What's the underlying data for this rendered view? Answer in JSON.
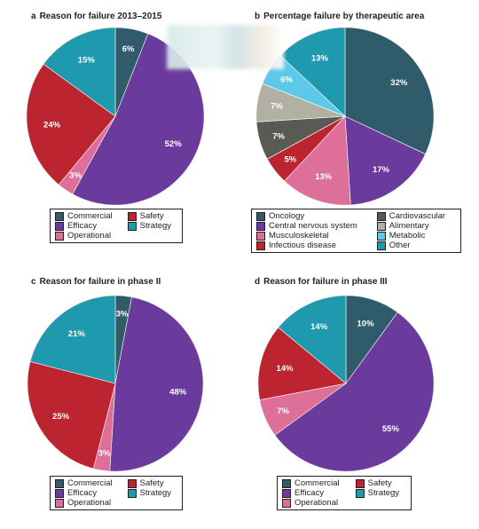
{
  "colors": {
    "Commercial": "#2f5b6b",
    "Efficacy": "#6a3a9c",
    "Safety": "#bc2530",
    "Strategy": "#1e99ad",
    "Operational": "#de6f99",
    "Oncology": "#2f5b6b",
    "Central nervous system": "#6a3a9c",
    "Musculoskeletal": "#de6f99",
    "Infectious disease": "#bc2530",
    "Cardiovascular": "#5a5a55",
    "Alimentary": "#b2b0a2",
    "Metabolic": "#5cc9ea",
    "Other": "#1e99ad"
  },
  "panels": [
    {
      "letter": "a",
      "title": "Reason for failure 2013–2015",
      "legend": [
        "Commercial",
        "Safety",
        "Efficacy",
        "Strategy",
        "Operational"
      ]
    },
    {
      "letter": "b",
      "title": "Percentage failure by therapeutic area",
      "legend": [
        "Oncology",
        "Cardiovascular",
        "Central nervous system",
        "Alimentary",
        "Musculoskeletal",
        "Metabolic",
        "Infectious disease",
        "Other"
      ]
    },
    {
      "letter": "c",
      "title": "Reason for failure in phase II",
      "legend": [
        "Commercial",
        "Safety",
        "Efficacy",
        "Strategy",
        "Operational"
      ]
    },
    {
      "letter": "d",
      "title": "Reason for failure in phase III",
      "legend": [
        "Commercial",
        "Safety",
        "Efficacy",
        "Strategy",
        "Operational"
      ]
    }
  ],
  "chart_data": [
    {
      "type": "pie",
      "title": "Reason for failure 2013–2015",
      "slices": [
        {
          "name": "Commercial",
          "value": 6,
          "label": "6%"
        },
        {
          "name": "Efficacy",
          "value": 52,
          "label": "52%"
        },
        {
          "name": "Operational",
          "value": 3,
          "label": "3%"
        },
        {
          "name": "Safety",
          "value": 24,
          "label": "24%"
        },
        {
          "name": "Strategy",
          "value": 15,
          "label": "15%"
        }
      ]
    },
    {
      "type": "pie",
      "title": "Percentage failure by therapeutic area",
      "slices": [
        {
          "name": "Oncology",
          "value": 32,
          "label": "32%"
        },
        {
          "name": "Central nervous system",
          "value": 17,
          "label": "17%"
        },
        {
          "name": "Musculoskeletal",
          "value": 13,
          "label": "13%"
        },
        {
          "name": "Infectious disease",
          "value": 5,
          "label": "5%"
        },
        {
          "name": "Cardiovascular",
          "value": 7,
          "label": "7%"
        },
        {
          "name": "Alimentary",
          "value": 7,
          "label": "7%"
        },
        {
          "name": "Metabolic",
          "value": 6,
          "label": "6%"
        },
        {
          "name": "Other",
          "value": 13,
          "label": "13%"
        }
      ]
    },
    {
      "type": "pie",
      "title": "Reason for failure in phase II",
      "slices": [
        {
          "name": "Commercial",
          "value": 3,
          "label": "3%"
        },
        {
          "name": "Efficacy",
          "value": 48,
          "label": "48%"
        },
        {
          "name": "Operational",
          "value": 3,
          "label": "3%"
        },
        {
          "name": "Safety",
          "value": 25,
          "label": "25%"
        },
        {
          "name": "Strategy",
          "value": 21,
          "label": "21%"
        }
      ]
    },
    {
      "type": "pie",
      "title": "Reason for failure in phase III",
      "slices": [
        {
          "name": "Commercial",
          "value": 10,
          "label": "10%"
        },
        {
          "name": "Efficacy",
          "value": 55,
          "label": "55%"
        },
        {
          "name": "Operational",
          "value": 7,
          "label": "7%"
        },
        {
          "name": "Safety",
          "value": 14,
          "label": "14%"
        },
        {
          "name": "Strategy",
          "value": 14,
          "label": "14%"
        }
      ]
    }
  ]
}
